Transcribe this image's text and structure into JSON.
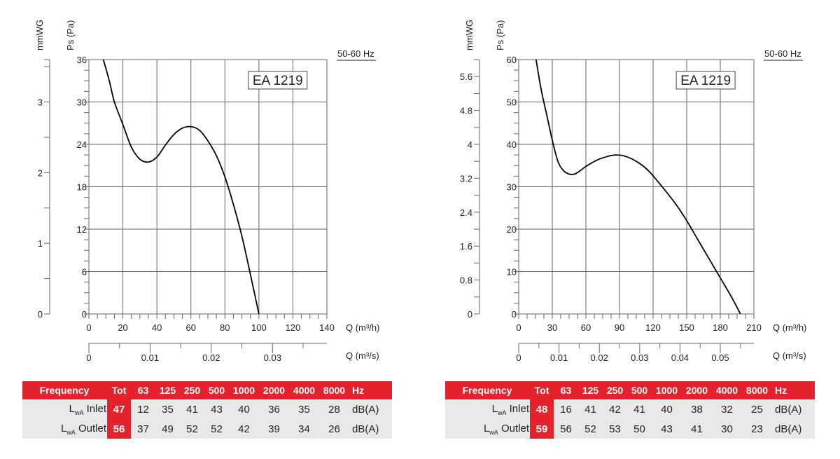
{
  "chart_data": [
    {
      "type": "line",
      "title": "EA 1219",
      "frequency_label": "50-60 Hz",
      "xlabel": "Q (m³/h)",
      "x2label": "Q (m³/s)",
      "ylabel": "Ps (Pa)",
      "y2label": "mmWG",
      "xlim": [
        0,
        140
      ],
      "xticks": [
        "0",
        "20",
        "40",
        "60",
        "80",
        "100",
        "120",
        "140"
      ],
      "x2ticks": [
        "0",
        "0.01",
        "0.02",
        "0.03"
      ],
      "ylim": [
        0,
        36
      ],
      "yticks": [
        "0",
        "6",
        "12",
        "18",
        "24",
        "30",
        "36"
      ],
      "y2ticks": [
        "0",
        "1",
        "2",
        "3"
      ],
      "y2_minor_step": 0.5,
      "pa_per_mmwg": 10,
      "grid": true,
      "x": [
        8.5,
        12,
        15,
        20,
        25,
        30,
        35,
        40,
        45,
        50,
        55,
        60,
        65,
        70,
        75,
        80,
        85,
        90,
        95,
        100
      ],
      "y": [
        36,
        33,
        30,
        26.8,
        23.6,
        21.9,
        21.5,
        22.2,
        23.9,
        25.4,
        26.3,
        26.5,
        26,
        24.5,
        22.4,
        19.4,
        15.5,
        11,
        5.6,
        0
      ]
    },
    {
      "type": "line",
      "title": "EA 1219",
      "frequency_label": "50-60 Hz",
      "xlabel": "Q (m³/h)",
      "x2label": "Q (m³/s)",
      "ylabel": "Ps (Pa)",
      "y2label": "mmWG",
      "xlim": [
        0,
        210
      ],
      "xticks": [
        "0",
        "30",
        "60",
        "90",
        "120",
        "150",
        "180",
        "210"
      ],
      "x2ticks": [
        "0",
        "0.01",
        "0.02",
        "0.03",
        "0.04",
        "0.05"
      ],
      "ylim": [
        0,
        60
      ],
      "yticks": [
        "0",
        "10",
        "20",
        "30",
        "40",
        "50",
        "60"
      ],
      "y2ticks": [
        "0",
        "0.8",
        "1.6",
        "2.4",
        "3.2",
        "4",
        "4.8",
        "5.6"
      ],
      "y2_minor_step": 0.4,
      "pa_per_mmwg": 10,
      "grid": true,
      "x": [
        15.5,
        20,
        25,
        30,
        35,
        40,
        45,
        50,
        55,
        60,
        70,
        80,
        87,
        95,
        105,
        115,
        125,
        140,
        150,
        160,
        170,
        180,
        190,
        198
      ],
      "y": [
        60,
        53,
        47,
        41,
        36,
        33.8,
        33,
        33,
        33.8,
        34.8,
        36.3,
        37.2,
        37.5,
        37.2,
        36,
        34,
        31,
        26,
        22,
        17.5,
        13,
        8.5,
        4,
        0
      ]
    }
  ],
  "tables": [
    {
      "header": [
        "Frequency",
        "Tot",
        "63",
        "125",
        "250",
        "500",
        "1000",
        "2000",
        "4000",
        "8000",
        "Hz"
      ],
      "rows": [
        {
          "label_main": "L",
          "label_sub": "wA",
          "label_rest": " Inlet",
          "tot": "47",
          "values": [
            "12",
            "35",
            "41",
            "43",
            "40",
            "36",
            "35",
            "28"
          ],
          "unit": "dB(A)"
        },
        {
          "label_main": "L",
          "label_sub": "wA",
          "label_rest": " Outlet",
          "tot": "56",
          "values": [
            "37",
            "49",
            "52",
            "52",
            "42",
            "39",
            "34",
            "26"
          ],
          "unit": "dB(A)"
        }
      ]
    },
    {
      "header": [
        "Frequency",
        "Tot",
        "63",
        "125",
        "250",
        "500",
        "1000",
        "2000",
        "4000",
        "8000",
        "Hz"
      ],
      "rows": [
        {
          "label_main": "L",
          "label_sub": "wA",
          "label_rest": " Inlet",
          "tot": "48",
          "values": [
            "16",
            "41",
            "42",
            "41",
            "40",
            "38",
            "32",
            "25"
          ],
          "unit": "dB(A)"
        },
        {
          "label_main": "L",
          "label_sub": "wA",
          "label_rest": " Outlet",
          "tot": "59",
          "values": [
            "56",
            "52",
            "53",
            "50",
            "43",
            "41",
            "30",
            "23"
          ],
          "unit": "dB(A)"
        }
      ]
    }
  ],
  "colors": {
    "accent": "#e3222b",
    "row_bg": "#e8e8e8",
    "line": "#000000",
    "grid": "#555555"
  }
}
